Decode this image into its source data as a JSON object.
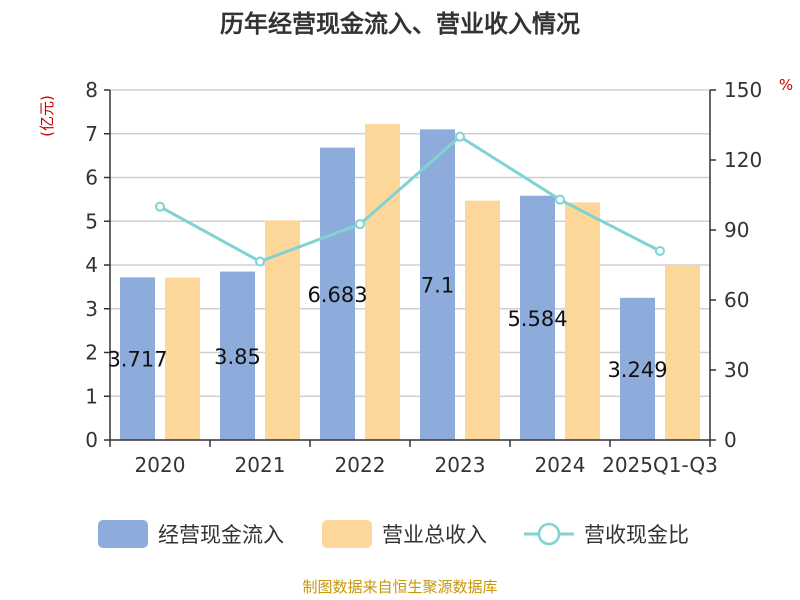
{
  "chart_data": {
    "type": "bar",
    "title": "历年经营现金流入、营业收入情况",
    "categories": [
      "2020",
      "2021",
      "2022",
      "2023",
      "2024",
      "2025Q1-Q3"
    ],
    "series": [
      {
        "name": "经营现金流入",
        "type": "bar",
        "axis": "left",
        "color": "#8eacdb",
        "values": [
          3.717,
          3.85,
          6.683,
          7.1,
          5.584,
          3.249
        ],
        "labels": [
          "3.717",
          "3.85",
          "6.683",
          "7.1",
          "5.584",
          "3.249"
        ]
      },
      {
        "name": "营业总收入",
        "type": "bar",
        "axis": "left",
        "color": "#fdd79a",
        "values": [
          3.71,
          5.02,
          7.22,
          5.47,
          5.43,
          4.0
        ]
      },
      {
        "name": "营收现金比",
        "type": "line",
        "axis": "right",
        "color": "#7fd3d3",
        "values": [
          100,
          76.5,
          92.5,
          130,
          103,
          81
        ]
      }
    ],
    "yleft": {
      "label": "(亿元)",
      "range": [
        0,
        8
      ],
      "ticks": [
        "0",
        "1",
        "2",
        "3",
        "4",
        "5",
        "6",
        "7",
        "8"
      ]
    },
    "yright": {
      "label": "%",
      "range": [
        0,
        150
      ],
      "ticks": [
        "0",
        "30",
        "60",
        "90",
        "120",
        "150"
      ]
    },
    "grid": true,
    "legend_position": "bottom"
  },
  "source": "制图数据来自恒生聚源数据库"
}
